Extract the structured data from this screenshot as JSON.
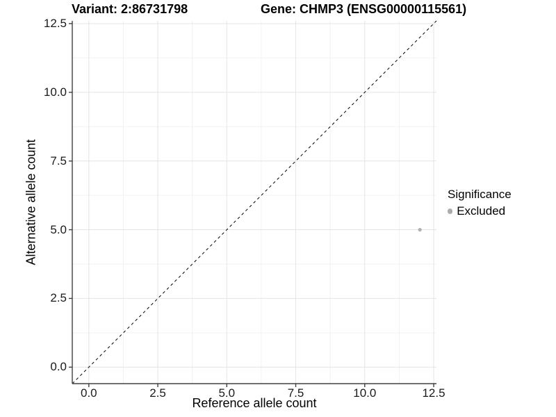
{
  "chart_data": {
    "type": "scatter",
    "titles": [
      "Variant: 2:86731798",
      "Gene: CHMP3 (ENSG00000115561)"
    ],
    "xlabel": "Reference allele count",
    "ylabel": "Alternative allele count",
    "xlim": [
      -0.6,
      12.6
    ],
    "ylim": [
      -0.6,
      12.6
    ],
    "xticks": [
      0.0,
      2.5,
      5.0,
      7.5,
      10.0,
      12.5
    ],
    "yticks": [
      0.0,
      2.5,
      5.0,
      7.5,
      10.0,
      12.5
    ],
    "tick_decimals": 1,
    "grid": {
      "major": true,
      "minor": true,
      "major_color": "#e4e4e4",
      "minor_color": "#f2f2f2"
    },
    "axis_line_color": "#404040",
    "reference_line": {
      "slope": 1,
      "intercept": 0,
      "style": "dashed",
      "color": "#000000",
      "dash": "4,4"
    },
    "series": [
      {
        "name": "Excluded",
        "color": "#b0b0b0",
        "point_radius": 2.6,
        "points": [
          {
            "x": 12,
            "y": 5
          }
        ]
      }
    ],
    "legend": {
      "position": "right",
      "title": "Significance",
      "items": [
        {
          "label": "Excluded",
          "color": "#acacac",
          "key_radius": 3.6
        }
      ]
    }
  }
}
